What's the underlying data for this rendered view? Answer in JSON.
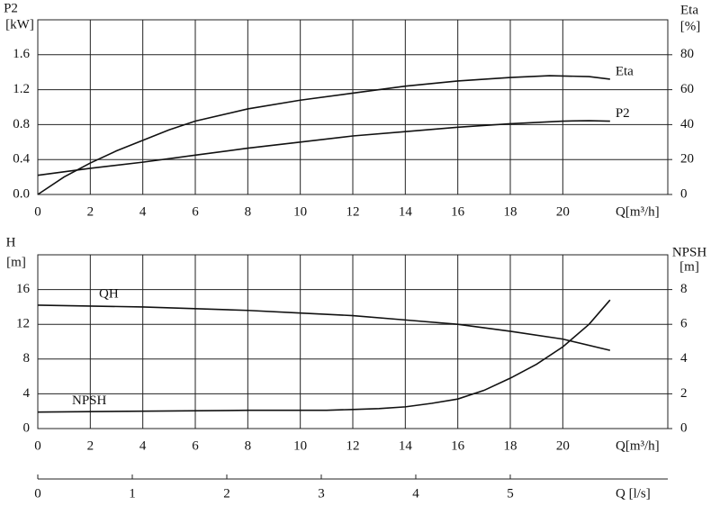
{
  "chart_data": [
    {
      "type": "line",
      "y_label": "P2",
      "y_unit": "[kW]",
      "y2_label": "Eta",
      "y2_unit": "[%]",
      "x_label": "Q[m³/h]",
      "xlim": [
        0,
        24
      ],
      "xticks": [
        0,
        2,
        4,
        6,
        8,
        10,
        12,
        14,
        16,
        18,
        20
      ],
      "ylim": [
        0,
        2.0
      ],
      "yticks": [
        {
          "value": 0,
          "label": "0.0"
        },
        0.4,
        0.8,
        1.2,
        1.6
      ],
      "y2lim": [
        0,
        100
      ],
      "y2ticks": [
        0,
        20,
        40,
        60,
        80
      ],
      "grid": true,
      "series": [
        {
          "name": "Eta",
          "color": "#111111",
          "axis": "y2",
          "x": [
            0,
            1,
            2,
            3,
            4,
            5,
            6,
            8,
            10,
            12,
            14,
            16,
            18,
            19.5,
            21,
            21.8
          ],
          "values": [
            0,
            10,
            18,
            25,
            31,
            37,
            42,
            49,
            54,
            58,
            62,
            65,
            67,
            68,
            67.5,
            66
          ]
        },
        {
          "name": "P2",
          "color": "#111111",
          "x": [
            0,
            2,
            4,
            6,
            8,
            10,
            12,
            14,
            16,
            18,
            20,
            21,
            21.8
          ],
          "values": [
            0.22,
            0.3,
            0.37,
            0.45,
            0.53,
            0.6,
            0.67,
            0.72,
            0.77,
            0.81,
            0.84,
            0.845,
            0.84
          ]
        }
      ]
    },
    {
      "type": "line",
      "y_label": "H",
      "y_unit": "[m]",
      "y2_label": "NPSH",
      "y2_unit": "[m]",
      "x_label": "Q[m³/h]",
      "xlim": [
        0,
        24
      ],
      "xticks": [
        0,
        2,
        4,
        6,
        8,
        10,
        12,
        14,
        16,
        18,
        20
      ],
      "ylim": [
        0,
        20
      ],
      "yticks": [
        0,
        4,
        8,
        12,
        16
      ],
      "y2lim": [
        0,
        10
      ],
      "y2ticks": [
        0,
        2,
        4,
        6,
        8
      ],
      "grid": true,
      "x2_label": "Q [l/s]",
      "x2lim": [
        0,
        6.667
      ],
      "x2ticks": [
        0,
        1,
        2,
        3,
        4,
        5
      ],
      "series": [
        {
          "name": "QH",
          "color": "#111111",
          "x": [
            0,
            4,
            8,
            10,
            12,
            14,
            16,
            18,
            20,
            21.8
          ],
          "values": [
            14.2,
            14.0,
            13.6,
            13.3,
            13.0,
            12.5,
            12.0,
            11.2,
            10.3,
            9.0
          ]
        },
        {
          "name": "NPSH",
          "color": "#111111",
          "axis": "y2",
          "x": [
            0,
            4,
            8,
            10,
            11,
            12,
            13,
            14,
            15,
            16,
            17,
            18,
            19,
            20,
            21,
            21.8
          ],
          "values": [
            0.95,
            1.0,
            1.05,
            1.05,
            1.05,
            1.1,
            1.15,
            1.25,
            1.45,
            1.7,
            2.2,
            2.9,
            3.7,
            4.7,
            6.0,
            7.4
          ]
        }
      ]
    }
  ]
}
